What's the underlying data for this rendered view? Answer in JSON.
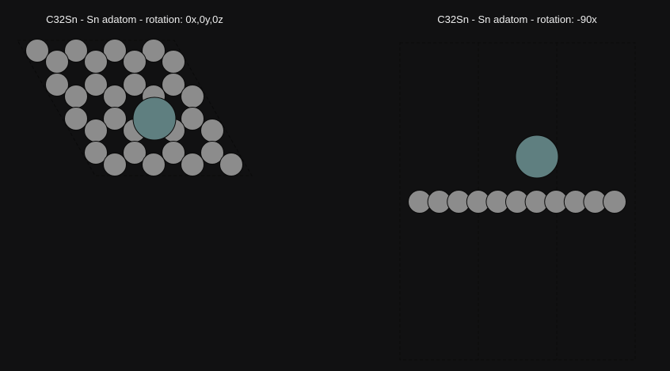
{
  "panels": [
    {
      "title": "C32Sn - Sn adatom - rotation: 0x,0y,0z"
    },
    {
      "title": "C32Sn - Sn adatom - rotation: -90x"
    }
  ],
  "colors": {
    "background": "#111112",
    "carbon": "#8c8c8c",
    "tin": "#5f7f80",
    "outline": "#0a0a0a",
    "cell": "#2a2a2a"
  },
  "atoms": {
    "carbon_count": 32,
    "tin_count": 1
  }
}
